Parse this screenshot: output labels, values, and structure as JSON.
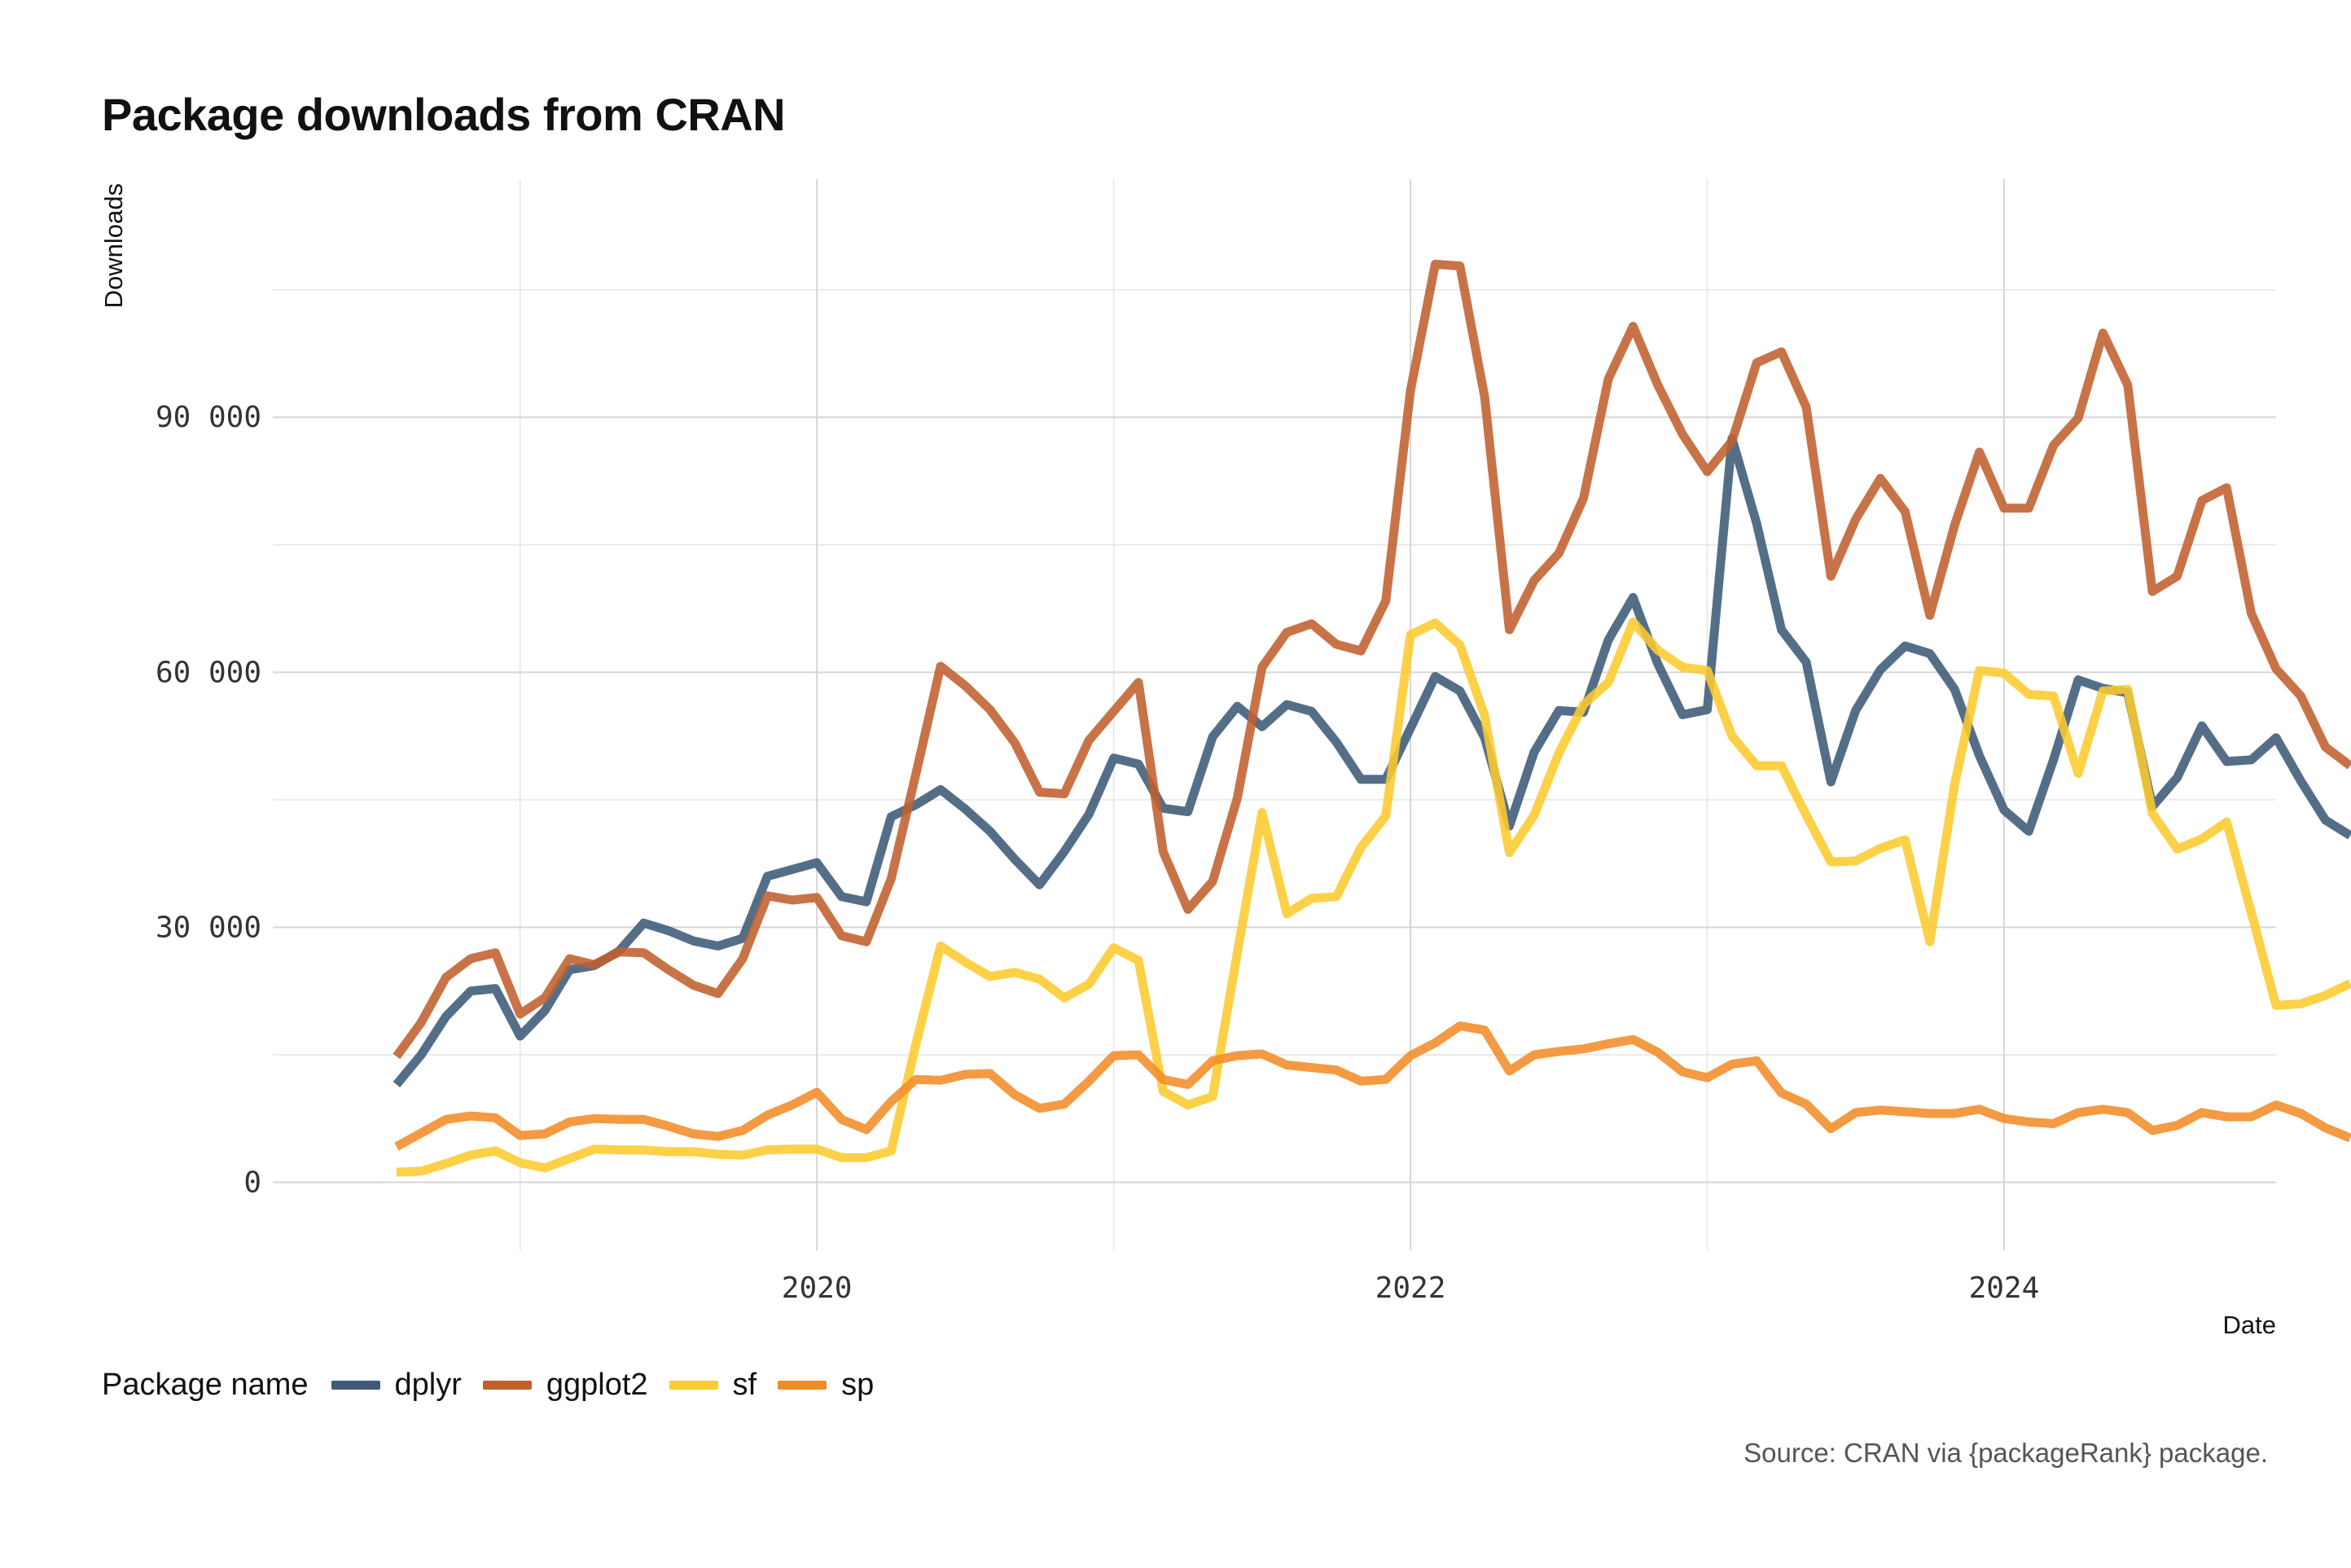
{
  "chart_data": {
    "type": "line",
    "title": "Package downloads from CRAN",
    "xlabel": "Date",
    "ylabel": "Downloads",
    "caption": "Source: CRAN via {packageRank} package.",
    "legend_title": "Package name",
    "legend_position": "bottom-left",
    "grid": true,
    "x_start": "2018-08",
    "x_interval": "month",
    "xlim": [
      "2018-03",
      "2024-12"
    ],
    "ylim": [
      -8000,
      118000
    ],
    "x_ticks": [
      {
        "date": "2020-01",
        "label": "2020"
      },
      {
        "date": "2022-01",
        "label": "2022"
      },
      {
        "date": "2024-01",
        "label": "2024"
      }
    ],
    "y_ticks": [
      {
        "value": 0,
        "label": "0"
      },
      {
        "value": 30000,
        "label": "30 000"
      },
      {
        "value": 60000,
        "label": "60 000"
      },
      {
        "value": 90000,
        "label": "90 000"
      }
    ],
    "series": [
      {
        "name": "dplyr",
        "color": "#3E5A78",
        "values": [
          11500,
          15000,
          19500,
          22500,
          22800,
          17200,
          20200,
          25000,
          25500,
          27200,
          30500,
          29600,
          28400,
          27800,
          28700,
          36000,
          36800,
          37600,
          33600,
          33000,
          43000,
          44400,
          46200,
          43900,
          41300,
          38000,
          35000,
          38900,
          43300,
          49900,
          49200,
          44000,
          43600,
          52400,
          56000,
          53600,
          56200,
          55400,
          51800,
          47400,
          47400,
          53400,
          59500,
          57800,
          52300,
          41900,
          50600,
          55500,
          55300,
          63800,
          68800,
          61000,
          55000,
          55600,
          87500,
          77500,
          65000,
          61200,
          47100,
          55500,
          60300,
          63100,
          62200,
          58000,
          50200,
          43800,
          41300,
          49700,
          59100,
          58100,
          57600,
          44200,
          47600,
          53700,
          49500,
          49700,
          52300,
          47200,
          42600,
          40800
        ]
      },
      {
        "name": "ggplot2",
        "color": "#C0602E",
        "values": [
          14800,
          18800,
          24100,
          26300,
          27000,
          19800,
          21700,
          26300,
          25600,
          27100,
          27000,
          25000,
          23200,
          22200,
          26300,
          33700,
          33200,
          33500,
          29000,
          28300,
          35700,
          48000,
          60700,
          58400,
          55600,
          51700,
          45900,
          45700,
          52000,
          55400,
          58800,
          38900,
          32100,
          35400,
          45200,
          60600,
          64700,
          65700,
          63300,
          62500,
          68400,
          93100,
          108000,
          107800,
          92400,
          65000,
          70800,
          74000,
          80500,
          94500,
          100700,
          93800,
          88000,
          83600,
          87200,
          96400,
          97700,
          91200,
          71300,
          78000,
          82800,
          78900,
          66700,
          77300,
          85900,
          79300,
          79300,
          86700,
          89900,
          99900,
          93800,
          69500,
          71300,
          80200,
          81700,
          66900,
          60400,
          57200,
          51200,
          49000
        ]
      },
      {
        "name": "sf",
        "color": "#FCCB2E",
        "values": [
          1200,
          1300,
          2200,
          3200,
          3700,
          2300,
          1700,
          2800,
          3900,
          3800,
          3800,
          3600,
          3600,
          3300,
          3200,
          3800,
          3900,
          3900,
          2900,
          2900,
          3700,
          16200,
          27800,
          25900,
          24200,
          24700,
          23900,
          21700,
          23300,
          27600,
          26100,
          10700,
          9100,
          10100,
          27000,
          43500,
          31600,
          33400,
          33600,
          39400,
          43100,
          64400,
          65800,
          63200,
          54900,
          38800,
          43200,
          50500,
          56200,
          58800,
          65900,
          62600,
          60600,
          60200,
          52500,
          49000,
          49000,
          43200,
          37700,
          37800,
          39300,
          40300,
          28300,
          46800,
          60200,
          59900,
          57400,
          57200,
          48100,
          57800,
          58000,
          43400,
          39200,
          40400,
          42400,
          31700,
          20800,
          21000,
          22000,
          23400
        ]
      },
      {
        "name": "sp",
        "color": "#F28C28",
        "values": [
          4200,
          5800,
          7400,
          7800,
          7600,
          5500,
          5700,
          7100,
          7500,
          7400,
          7400,
          6600,
          5700,
          5400,
          6100,
          7900,
          9100,
          10600,
          7400,
          6200,
          9500,
          12100,
          12000,
          12700,
          12800,
          10300,
          8700,
          9200,
          11900,
          14900,
          15000,
          12100,
          11500,
          14300,
          14900,
          15100,
          13800,
          13500,
          13200,
          11900,
          12100,
          14900,
          16400,
          18400,
          17900,
          13100,
          15000,
          15400,
          15700,
          16300,
          16800,
          15300,
          13000,
          12300,
          13900,
          14300,
          10500,
          9200,
          6300,
          8200,
          8500,
          8300,
          8100,
          8100,
          8600,
          7500,
          7100,
          6900,
          8200,
          8600,
          8200,
          6100,
          6700,
          8200,
          7700,
          7700,
          9100,
          8100,
          6400,
          5200
        ]
      }
    ]
  }
}
